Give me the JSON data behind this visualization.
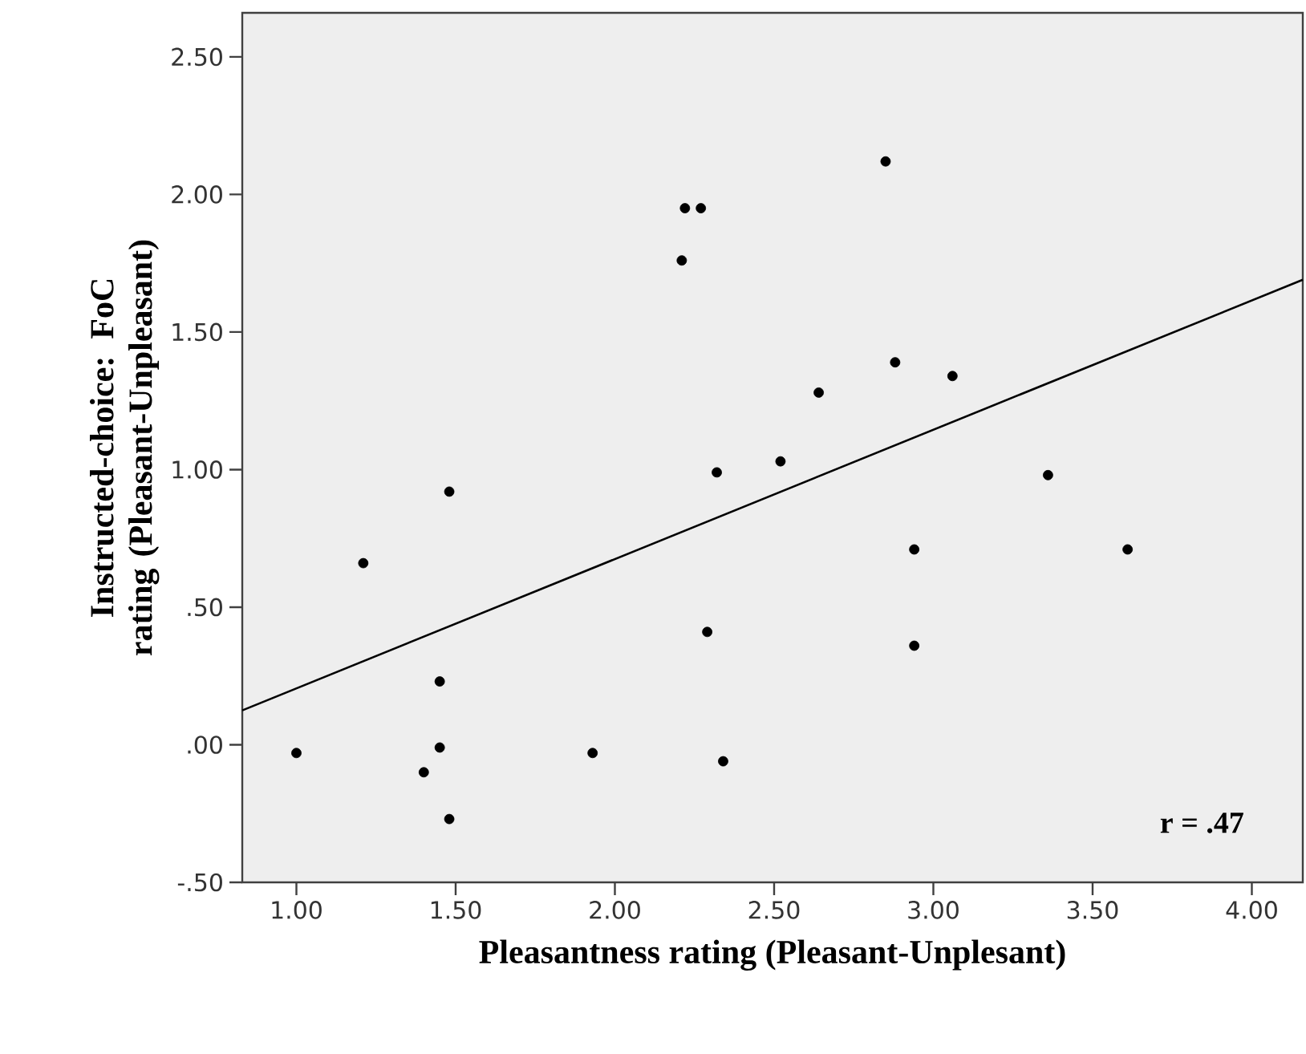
{
  "chart_data": {
    "type": "scatter",
    "xlabel": "Pleasantness rating (Pleasant-Unplesant)",
    "ylabel": "Instructed-choice: FoC rating (Pleasant-Unpleasant)",
    "xlim": [
      0.83,
      4.16
    ],
    "ylim": [
      -0.5,
      2.66
    ],
    "xticks": [
      {
        "value": 1,
        "label": "1.00"
      },
      {
        "value": 1.5,
        "label": "1.50"
      },
      {
        "value": 2,
        "label": "2.00"
      },
      {
        "value": 2.5,
        "label": "2.50"
      },
      {
        "value": 3,
        "label": "3.00"
      },
      {
        "value": 3.5,
        "label": "3.50"
      },
      {
        "value": 4,
        "label": "4.00"
      }
    ],
    "yticks": [
      {
        "value": -0.5,
        "label": "-.50"
      },
      {
        "value": 0,
        "label": ".00"
      },
      {
        "value": 0.5,
        "label": ".50"
      },
      {
        "value": 1,
        "label": "1.00"
      },
      {
        "value": 1.5,
        "label": "1.50"
      },
      {
        "value": 2,
        "label": "2.00"
      },
      {
        "value": 2.5,
        "label": "2.50"
      }
    ],
    "series": [
      {
        "type": "scatter",
        "color": "#000000",
        "marker": "circle",
        "x": [
          1.0,
          1.21,
          1.48,
          1.45,
          1.45,
          1.4,
          1.48,
          1.93,
          2.34,
          2.29,
          2.32,
          2.21,
          2.22,
          2.27,
          2.85,
          2.52,
          2.64,
          2.88,
          3.06,
          3.36,
          2.94,
          3.61,
          2.94
        ],
        "values": [
          -0.03,
          0.66,
          0.92,
          0.23,
          -0.01,
          -0.1,
          -0.27,
          -0.03,
          -0.06,
          0.41,
          0.99,
          1.76,
          1.95,
          1.95,
          2.12,
          1.03,
          1.28,
          1.39,
          1.34,
          0.98,
          0.71,
          0.71,
          0.36
        ]
      },
      {
        "type": "line",
        "color": "#000000",
        "x": [
          0.83,
          4.16
        ],
        "values": [
          0.125,
          1.69
        ]
      }
    ],
    "annotations": [
      "r = .47"
    ]
  }
}
